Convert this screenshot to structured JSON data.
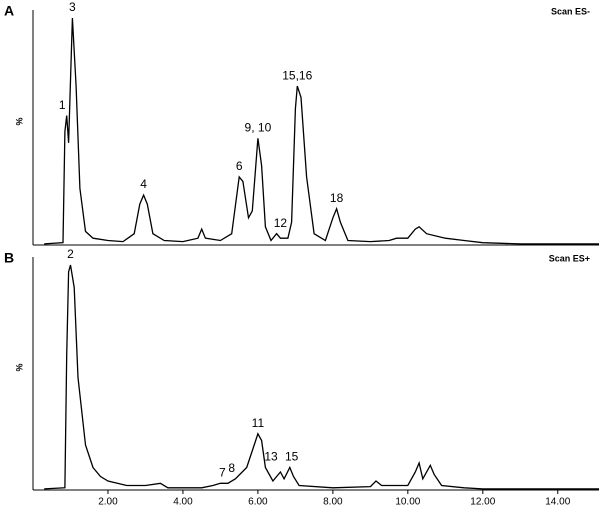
{
  "chart_data": [
    {
      "type": "line",
      "panel": "A",
      "mode": "Scan ES-",
      "ylabel": "%",
      "x": [
        0.3,
        0.8,
        0.85,
        0.9,
        0.95,
        1.05,
        1.15,
        1.25,
        1.4,
        1.6,
        2.0,
        2.4,
        2.7,
        2.85,
        2.95,
        3.05,
        3.2,
        3.5,
        4.0,
        4.4,
        4.5,
        4.6,
        5.0,
        5.3,
        5.5,
        5.6,
        5.75,
        5.85,
        6.0,
        6.1,
        6.2,
        6.35,
        6.5,
        6.6,
        6.8,
        6.9,
        7.0,
        7.05,
        7.15,
        7.3,
        7.5,
        7.8,
        8.0,
        8.1,
        8.2,
        8.4,
        9.0,
        9.5,
        9.7,
        10.0,
        10.2,
        10.3,
        10.5,
        11.0,
        11.5,
        12.0,
        13.0,
        15.1
      ],
      "series": [
        {
          "color": "#000000",
          "values": [
            0.5,
            1,
            50,
            57,
            45,
            100,
            70,
            25,
            6,
            3,
            2,
            1.5,
            5,
            18,
            22,
            18,
            5,
            2,
            1.5,
            3,
            7,
            3,
            2,
            5,
            30,
            28,
            12,
            15,
            47,
            35,
            8,
            2,
            5,
            3,
            3,
            10,
            60,
            70,
            65,
            30,
            5,
            2,
            12,
            16,
            10,
            2,
            1.5,
            2,
            3,
            3,
            7,
            8,
            5,
            3,
            2,
            1,
            0.5,
            0.5
          ]
        }
      ],
      "annotations": [
        {
          "text": "1",
          "x": 0.78
        },
        {
          "text": "3",
          "x": 1.05
        },
        {
          "text": "4",
          "x": 2.95
        },
        {
          "text": "6",
          "x": 5.5
        },
        {
          "text": "9, 10",
          "x": 6.0
        },
        {
          "text": "12",
          "x": 6.6
        },
        {
          "text": "15,16",
          "x": 7.05
        },
        {
          "text": "18",
          "x": 8.1
        }
      ],
      "xlim": [
        0,
        15.1
      ],
      "ylim": [
        0,
        100
      ]
    },
    {
      "type": "line",
      "panel": "B",
      "mode": "Scan ES+",
      "ylabel": "%",
      "x": [
        0.3,
        0.85,
        0.9,
        0.95,
        1.0,
        1.1,
        1.2,
        1.4,
        1.6,
        1.8,
        2.0,
        2.5,
        3.0,
        3.4,
        3.6,
        4.5,
        4.8,
        5.0,
        5.2,
        5.4,
        5.7,
        5.9,
        6.0,
        6.1,
        6.2,
        6.4,
        6.6,
        6.7,
        6.85,
        6.95,
        7.1,
        8.0,
        9.0,
        9.15,
        9.3,
        10.0,
        10.2,
        10.3,
        10.4,
        10.6,
        10.7,
        10.9,
        11.5,
        12.0,
        15.1
      ],
      "series": [
        {
          "color": "#000000",
          "values": [
            0.5,
            1,
            60,
            97,
            100,
            90,
            50,
            20,
            10,
            6,
            4,
            2,
            2,
            3,
            1,
            1,
            2,
            3,
            3,
            5,
            10,
            20,
            25,
            22,
            10,
            4,
            8,
            5,
            10,
            6,
            2,
            1,
            1.5,
            4,
            2,
            2,
            8,
            12,
            5,
            11,
            7,
            2,
            1,
            0.5,
            0.5
          ]
        }
      ],
      "annotations": [
        {
          "text": "2",
          "x": 1.0
        },
        {
          "text": "7",
          "x": 5.05
        },
        {
          "text": "8",
          "x": 5.3
        },
        {
          "text": "11",
          "x": 6.0
        },
        {
          "text": "13",
          "x": 6.35
        },
        {
          "text": "15",
          "x": 6.9
        }
      ],
      "xlim": [
        0,
        15.1
      ],
      "ylim": [
        0,
        100
      ],
      "xticks": [
        {
          "value": 2,
          "label": "2.00"
        },
        {
          "value": 4,
          "label": "4.00"
        },
        {
          "value": 6,
          "label": "6.00"
        },
        {
          "value": 8,
          "label": "8.00"
        },
        {
          "value": 10,
          "label": "10.00"
        },
        {
          "value": 12,
          "label": "12.00"
        },
        {
          "value": 14,
          "label": "14.00"
        }
      ]
    }
  ]
}
